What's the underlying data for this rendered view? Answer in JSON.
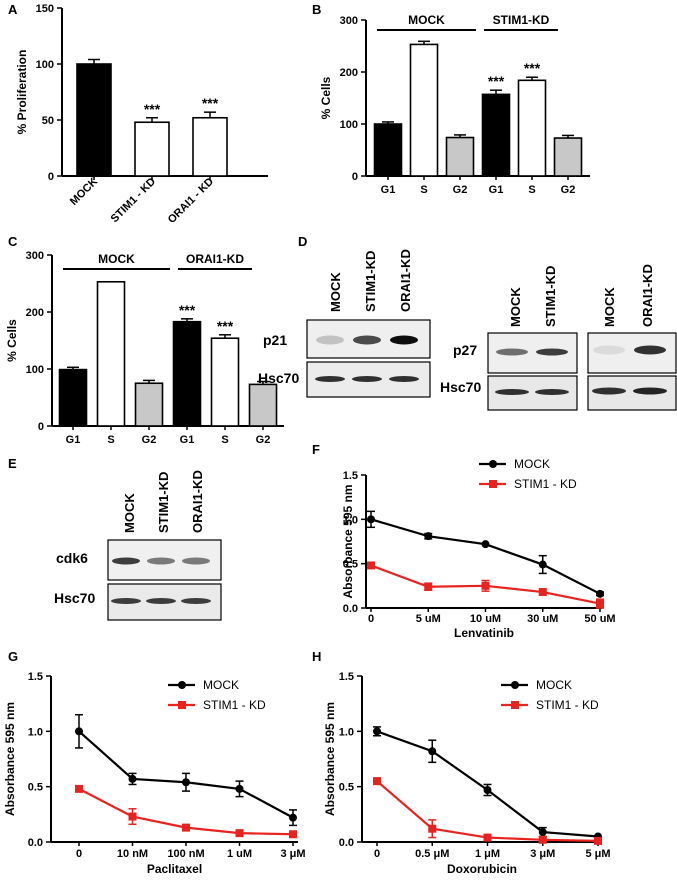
{
  "panels": {
    "A": "A",
    "B": "B",
    "C": "C",
    "D": "D",
    "E": "E",
    "F": "F",
    "G": "G",
    "H": "H"
  },
  "colors": {
    "mock": "#000000",
    "stim1": "#e8231f",
    "g2_bar": "#c8c8c8"
  },
  "blots": {
    "D1": {
      "lanes": [
        "MOCK",
        "STIM1-KD",
        "ORAI1-KD"
      ],
      "rows": [
        "p21",
        "Hsc70"
      ],
      "p21_band_intensity": [
        0.25,
        0.75,
        1.0
      ],
      "hsc70_band_intensity": [
        0.85,
        0.85,
        0.85
      ]
    },
    "D2": {
      "lanes": [
        "MOCK",
        "STIM1-KD"
      ],
      "rows": [
        "p27",
        "Hsc70"
      ],
      "p27_band_intensity": [
        0.6,
        0.8
      ],
      "hsc70_band_intensity": [
        0.85,
        0.85
      ]
    },
    "D3": {
      "lanes": [
        "MOCK",
        "ORAI1-KD"
      ],
      "p27_band_intensity": [
        0.15,
        0.85
      ],
      "hsc70_band_intensity": [
        0.85,
        0.9
      ]
    },
    "E": {
      "lanes": [
        "MOCK",
        "STIM1-KD",
        "ORAI1-KD"
      ],
      "rows": [
        "cdk6",
        "Hsc70"
      ],
      "cdk6_band_intensity": [
        0.8,
        0.55,
        0.55
      ],
      "hsc70_band_intensity": [
        0.8,
        0.8,
        0.8
      ]
    }
  },
  "chart_data": [
    {
      "id": "A",
      "type": "bar",
      "categories": [
        "MOCK",
        "STIM1 - KD",
        "ORAI1 - KD"
      ],
      "values": [
        100,
        48,
        52
      ],
      "errors": [
        4,
        4,
        5
      ],
      "fills": [
        "#000000",
        "#ffffff",
        "#ffffff"
      ],
      "annotations": [
        "",
        "***",
        "***"
      ],
      "ylabel": "% Proliferation",
      "ylim": [
        0,
        150
      ],
      "yticks": [
        0,
        50,
        100,
        150
      ]
    },
    {
      "id": "B",
      "type": "bar",
      "groups": [
        "MOCK",
        "STIM1-KD"
      ],
      "categories": [
        "G1",
        "S",
        "G2",
        "G1",
        "S",
        "G2"
      ],
      "values": [
        100,
        253,
        74,
        157,
        184,
        73
      ],
      "errors": [
        4,
        6,
        5,
        8,
        6,
        5
      ],
      "fills": [
        "#000000",
        "#ffffff",
        "#c8c8c8",
        "#000000",
        "#ffffff",
        "#c8c8c8"
      ],
      "annotations": [
        "",
        "",
        "",
        "***",
        "***",
        ""
      ],
      "ylabel": "% Cells",
      "ylim": [
        0,
        300
      ],
      "yticks": [
        0,
        100,
        200,
        300
      ]
    },
    {
      "id": "C",
      "type": "bar",
      "groups": [
        "MOCK",
        "ORAI1-KD"
      ],
      "categories": [
        "G1",
        "S",
        "G2",
        "G1",
        "S",
        "G2"
      ],
      "values": [
        99,
        253,
        75,
        183,
        154,
        73
      ],
      "errors": [
        4,
        0,
        5,
        5,
        6,
        5
      ],
      "fills": [
        "#000000",
        "#ffffff",
        "#c8c8c8",
        "#000000",
        "#ffffff",
        "#c8c8c8"
      ],
      "annotations": [
        "",
        "",
        "",
        "***",
        "***",
        ""
      ],
      "ylabel": "% Cells",
      "ylim": [
        0,
        300
      ],
      "yticks": [
        0,
        100,
        200,
        300
      ]
    },
    {
      "id": "F",
      "type": "line",
      "x": [
        "0",
        "5 uM",
        "10 uM",
        "30 uM",
        "50 uM"
      ],
      "xlabel": "Lenvatinib",
      "ylabel": "Absorbance 595 nm",
      "ylim": [
        0,
        1.5
      ],
      "yticks": [
        "0.0",
        "0.5",
        "1.0",
        "1.5"
      ],
      "legend": "top-right",
      "series": [
        {
          "name": "MOCK",
          "values": [
            1.0,
            0.81,
            0.72,
            0.49,
            0.16
          ],
          "errors": [
            0.09,
            0.03,
            0.0,
            0.1,
            0.02
          ],
          "color": "#000000"
        },
        {
          "name": "STIM1 - KD",
          "values": [
            0.48,
            0.24,
            0.25,
            0.18,
            0.05
          ],
          "errors": [
            0.02,
            0.04,
            0.06,
            0.0,
            0.05
          ],
          "color": "#e8231f"
        }
      ]
    },
    {
      "id": "G",
      "type": "line",
      "x": [
        "0",
        "10 nM",
        "100 nM",
        "1 uM",
        "3 μM"
      ],
      "xlabel": "Paclitaxel",
      "ylabel": "Absorbance 595 nm",
      "ylim": [
        0,
        1.5
      ],
      "yticks": [
        "0.0",
        "0.5",
        "1.0",
        "1.5"
      ],
      "legend": "top-right",
      "series": [
        {
          "name": "MOCK",
          "values": [
            1.0,
            0.57,
            0.54,
            0.48,
            0.22
          ],
          "errors": [
            0.15,
            0.05,
            0.08,
            0.07,
            0.07
          ],
          "color": "#000000"
        },
        {
          "name": "STIM1 - KD",
          "values": [
            0.48,
            0.23,
            0.13,
            0.08,
            0.07
          ],
          "errors": [
            0.02,
            0.07,
            0.02,
            0.01,
            0.01
          ],
          "color": "#e8231f"
        }
      ]
    },
    {
      "id": "H",
      "type": "line",
      "x": [
        "0",
        "0.5 μM",
        "1 μM",
        "3 μM",
        "5 μM"
      ],
      "xlabel": "Doxorubicin",
      "ylabel": "Absorbance 595 nm",
      "ylim": [
        0,
        1.5
      ],
      "yticks": [
        "0.0",
        "0.5",
        "1.0",
        "1.5"
      ],
      "legend": "top-right",
      "series": [
        {
          "name": "MOCK",
          "values": [
            1.0,
            0.82,
            0.47,
            0.09,
            0.05
          ],
          "errors": [
            0.04,
            0.1,
            0.05,
            0.04,
            0.0
          ],
          "color": "#000000"
        },
        {
          "name": "STIM1 - KD",
          "values": [
            0.55,
            0.12,
            0.04,
            0.02,
            0.01
          ],
          "errors": [
            0.02,
            0.08,
            0.02,
            0.01,
            0.0
          ],
          "color": "#e8231f"
        }
      ]
    }
  ]
}
